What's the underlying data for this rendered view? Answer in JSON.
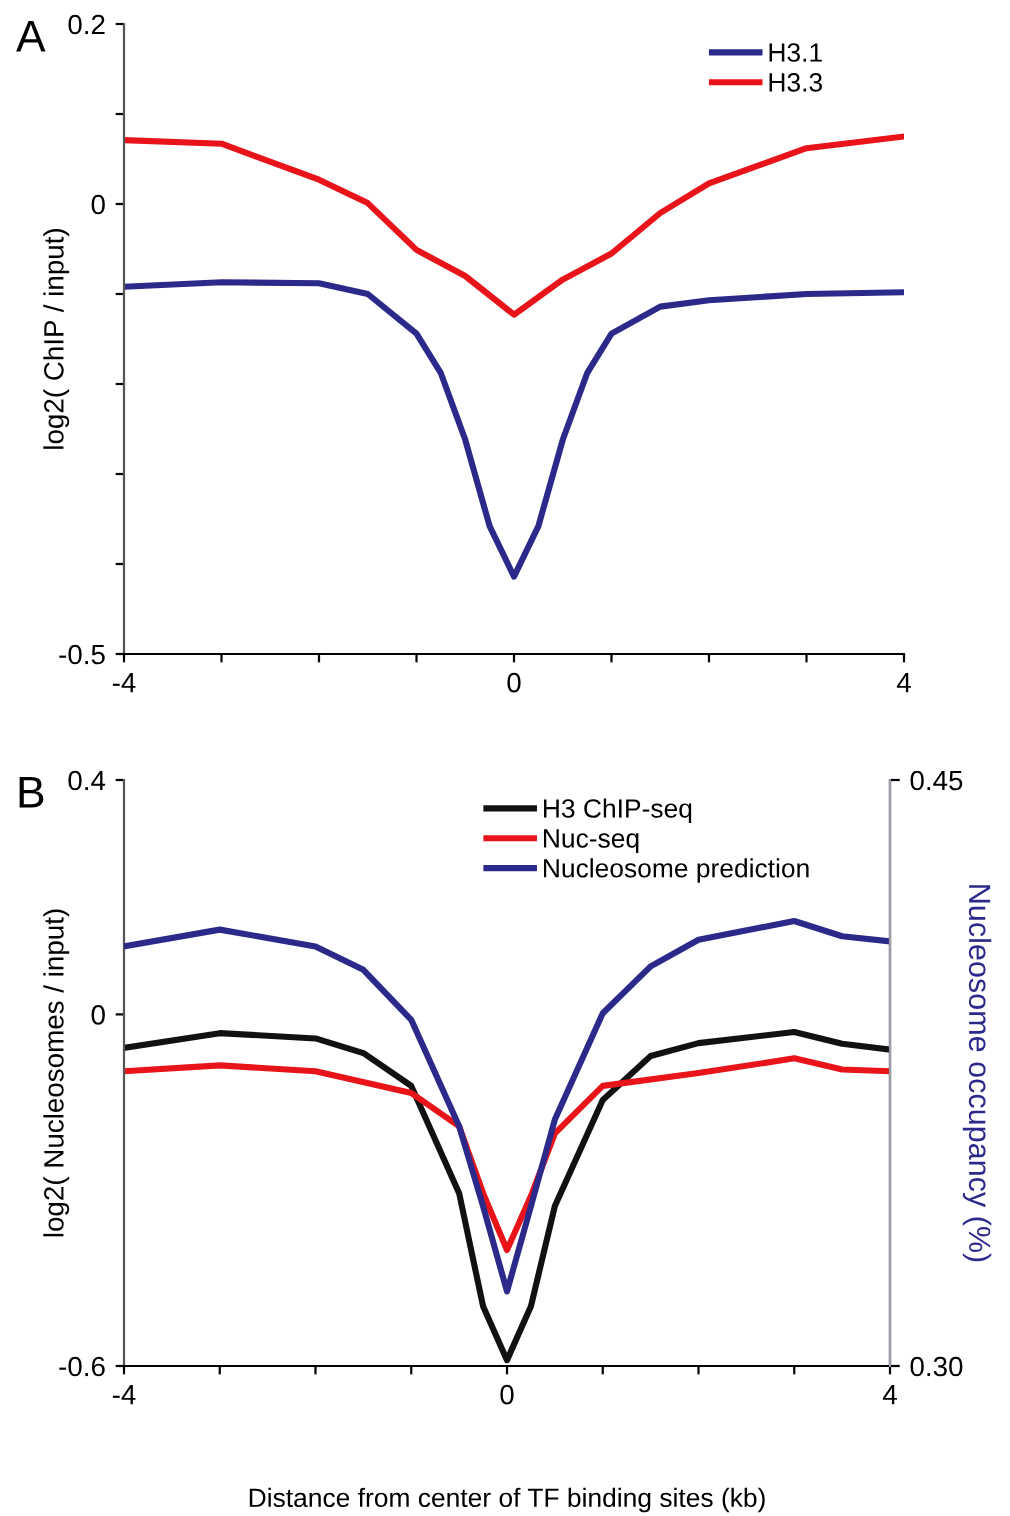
{
  "chart_data": [
    {
      "type": "line",
      "annotations": [
        "A"
      ],
      "ylabel": "log2( ChIP / input)",
      "xlim": [
        -4,
        4
      ],
      "xticks": [
        -4,
        {
          "value": -3,
          "label": null
        },
        {
          "value": -2,
          "label": null
        },
        {
          "value": -1,
          "label": null
        },
        0,
        {
          "value": 1,
          "label": null
        },
        {
          "value": 2,
          "label": null
        },
        {
          "value": 3,
          "label": null
        },
        4
      ],
      "ylim": [
        -0.5,
        0.2
      ],
      "yticks": [
        0.2,
        {
          "value": 0.1,
          "label": null
        },
        0,
        {
          "value": -0.1,
          "label": null
        },
        {
          "value": -0.2,
          "label": null
        },
        {
          "value": -0.3,
          "label": null
        },
        {
          "value": -0.4,
          "label": null
        },
        -0.5
      ],
      "grid": false,
      "legend": "top right",
      "line_style": "solid",
      "marker": "none",
      "series": [
        {
          "name": "H3.1",
          "color": "#2b2a8a",
          "x": [
            -4,
            -3,
            -2,
            -1.5,
            -1,
            -0.75,
            -0.5,
            -0.25,
            0,
            0.25,
            0.5,
            0.75,
            1,
            1.5,
            2,
            3,
            4
          ],
          "values": [
            -0.092,
            -0.087,
            -0.088,
            -0.1,
            -0.144,
            -0.188,
            -0.262,
            -0.358,
            -0.414,
            -0.358,
            -0.262,
            -0.188,
            -0.144,
            -0.114,
            -0.107,
            -0.1,
            -0.098
          ]
        },
        {
          "name": "H3.3",
          "color": "#e8141a",
          "x": [
            -4,
            -3,
            -2,
            -1.5,
            -1,
            -0.5,
            0,
            0.5,
            1,
            1.5,
            2,
            3,
            4
          ],
          "values": [
            0.071,
            0.067,
            0.027,
            0.001,
            -0.051,
            -0.08,
            -0.123,
            -0.084,
            -0.055,
            -0.01,
            0.023,
            0.062,
            0.075
          ]
        }
      ]
    },
    {
      "type": "line",
      "annotations": [
        "B"
      ],
      "xlabel": "Distance from center of TF binding sites (kb)",
      "ylabel": "log2( Nucleosomes / input)",
      "y2label": "Nucleosome occupancy (%)",
      "xlim": [
        -4,
        4
      ],
      "xticks": [
        -4,
        {
          "value": -3,
          "label": null
        },
        {
          "value": -2,
          "label": null
        },
        {
          "value": -1,
          "label": null
        },
        0,
        {
          "value": 1,
          "label": null
        },
        {
          "value": 2,
          "label": null
        },
        {
          "value": 3,
          "label": null
        },
        4
      ],
      "ylim": [
        -0.6,
        0.4
      ],
      "yticks": [
        {
          "value": -0.6,
          "label": "-0.6"
        },
        0,
        0.4
      ],
      "y2lim": [
        0.3,
        0.45
      ],
      "y2ticks": [
        {
          "value": 0.3,
          "label": "0.30"
        },
        0.45
      ],
      "grid": false,
      "legend": "top right",
      "line_style": "solid",
      "marker": "none",
      "series": [
        {
          "name": "H3 ChIP-seq",
          "color": "#111111",
          "x": [
            -4,
            -3,
            -2,
            -1.5,
            -1,
            -0.5,
            -0.25,
            0,
            0.25,
            0.5,
            1,
            1.5,
            2,
            3,
            3.5,
            4
          ],
          "values": [
            -0.057,
            -0.032,
            -0.041,
            -0.066,
            -0.122,
            -0.305,
            -0.498,
            -0.59,
            -0.498,
            -0.327,
            -0.146,
            -0.071,
            -0.049,
            -0.03,
            -0.05,
            -0.06
          ]
        },
        {
          "name": "Nuc-seq",
          "color": "#e8141a",
          "x": [
            -4,
            -3,
            -2,
            -1,
            -0.5,
            -0.25,
            0,
            0.25,
            0.5,
            1,
            2,
            3,
            3.5,
            4
          ],
          "values": [
            -0.097,
            -0.087,
            -0.097,
            -0.134,
            -0.191,
            -0.305,
            -0.402,
            -0.31,
            -0.203,
            -0.122,
            -0.1,
            -0.075,
            -0.094,
            -0.097
          ]
        },
        {
          "name": "Nucleosome prediction",
          "color": "#2b2a8a",
          "axis": "y2",
          "x": [
            -4,
            -3,
            -2,
            -1.5,
            -1,
            -0.5,
            -0.25,
            0,
            0.25,
            0.5,
            1,
            1.5,
            2,
            3,
            3.5,
            4
          ],
          "values": [
            0.4074,
            0.4117,
            0.4074,
            0.4014,
            0.3886,
            0.3614,
            0.3409,
            0.3191,
            0.3409,
            0.3631,
            0.3903,
            0.4023,
            0.4091,
            0.4139,
            0.41,
            0.4087
          ]
        }
      ]
    }
  ]
}
